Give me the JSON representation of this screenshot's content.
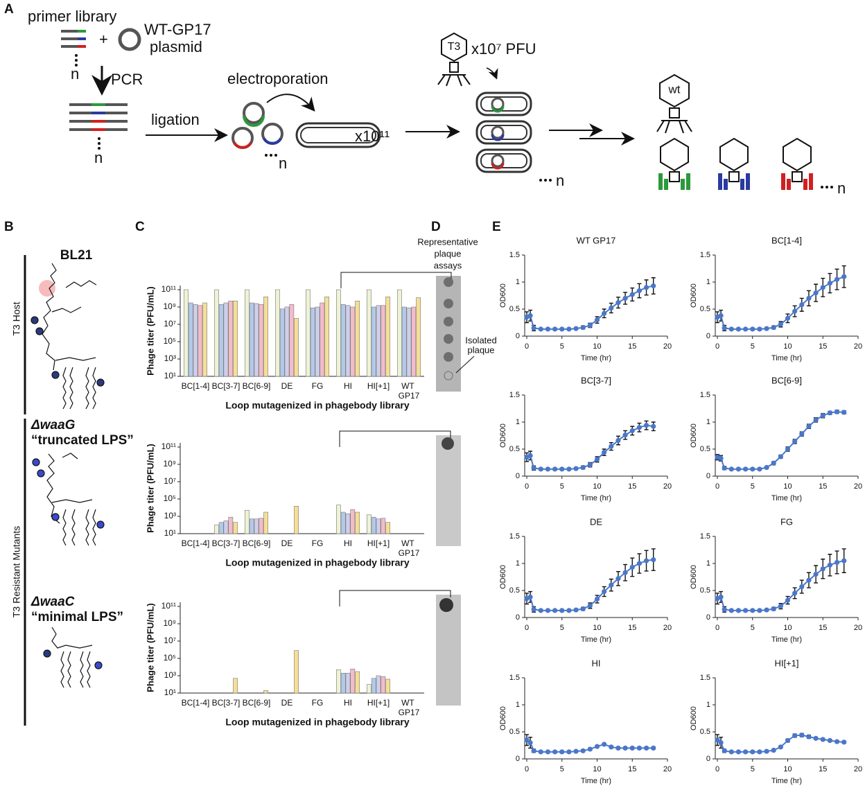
{
  "panels": {
    "a": "A",
    "b": "B",
    "c": "C",
    "d": "D",
    "e": "E"
  },
  "diagram": {
    "primer_library": "primer library",
    "plasmid": [
      "WT-GP17",
      "plasmid"
    ],
    "pcr": "PCR",
    "ligation": "ligation",
    "electroporation": "electroporation",
    "cells": "x10¹¹",
    "phage": "T3",
    "pfu": "x10⁷ PFU",
    "wt": "wt",
    "n": [
      "n",
      "n",
      "n",
      "n",
      "n"
    ]
  },
  "hosts": {
    "bl21": "BL21",
    "waag": "ΔwaaG",
    "waag_note": "“truncated LPS”",
    "waac": "ΔwaaC",
    "waac_note": "“minimal LPS”",
    "host_group": "T3 Host",
    "mutant_group": "T3 Resistant Mutants"
  },
  "plaques": {
    "title": [
      "Representative",
      "plaque",
      "assays"
    ],
    "isolated": [
      "Isolated",
      "plaque"
    ]
  },
  "chart_data": [
    {
      "type": "bar",
      "log_scale": true,
      "y_label": "Phage titer (PFU/mL)",
      "x_label": "Loop mutagenized in phagebody library",
      "categories": [
        "BC[1-4]",
        "BC[3-7]",
        "BC[6-9]",
        "DE",
        "FG",
        "HI",
        "HI[+1]",
        "WT GP17"
      ],
      "ylim": [
        10,
        300000000000
      ],
      "yticks": [
        {
          "value": 10,
          "label": "10¹"
        },
        {
          "value": 1000,
          "label": "10³"
        },
        {
          "value": 100000,
          "label": "10⁵"
        },
        {
          "value": 10000000,
          "label": "10⁷"
        },
        {
          "value": 1000000000,
          "label": "10⁹"
        },
        {
          "value": 100000000000,
          "label": "10¹¹"
        }
      ],
      "series": [
        {
          "color": "#eef3d6",
          "values": [
            100000000000,
            100000000000,
            100000000000,
            100000000000,
            100000000000,
            100000000000,
            100000000000,
            100000000000
          ]
        },
        {
          "color": "#b3c9ea",
          "values": [
            3000000000,
            2000000000,
            3000000000,
            600000000,
            800000000,
            2000000000,
            1000000000,
            1000000000
          ]
        },
        {
          "color": "#cfcfea",
          "values": [
            2000000000,
            3000000000,
            2500000000,
            1000000000,
            1000000000,
            1500000000,
            1500000000,
            800000000
          ]
        },
        {
          "color": "#f2bccb",
          "values": [
            1500000000,
            5000000000,
            2000000000,
            2000000000,
            3000000000,
            1000000000,
            1500000000,
            1000000000
          ]
        },
        {
          "color": "#f5df98",
          "values": [
            3000000000,
            5000000000,
            15000000000,
            50000000,
            15000000000,
            5000000000,
            15000000000,
            12000000000
          ]
        }
      ]
    },
    {
      "type": "bar",
      "log_scale": true,
      "y_label": "Phage titer (PFU/mL)",
      "x_label": "Loop mutagenized in phagebody library",
      "categories": [
        "BC[1-4]",
        "BC[3-7]",
        "BC[6-9]",
        "DE",
        "FG",
        "HI",
        "HI[+1]",
        "WT GP17"
      ],
      "ylim": [
        10,
        300000000000
      ],
      "yticks": [
        {
          "value": 10,
          "label": "10¹"
        },
        {
          "value": 1000,
          "label": "10³"
        },
        {
          "value": 100000,
          "label": "10⁵"
        },
        {
          "value": 10000000,
          "label": "10⁷"
        },
        {
          "value": 1000000000,
          "label": "10⁹"
        },
        {
          "value": 100000000000,
          "label": "10¹¹"
        }
      ],
      "series": [
        {
          "color": "#eef3d6",
          "values": [
            null,
            100,
            5000,
            null,
            null,
            20000,
            1500,
            null
          ]
        },
        {
          "color": "#b3c9ea",
          "values": [
            null,
            200,
            500,
            null,
            null,
            3000,
            800,
            null
          ]
        },
        {
          "color": "#cfcfea",
          "values": [
            null,
            300,
            500,
            null,
            null,
            2000,
            500,
            null
          ]
        },
        {
          "color": "#f2bccb",
          "values": [
            null,
            800,
            600,
            null,
            null,
            6000,
            600,
            null
          ]
        },
        {
          "color": "#f5df98",
          "values": [
            null,
            200,
            3000,
            15000,
            null,
            3000,
            200,
            null
          ]
        }
      ]
    },
    {
      "type": "bar",
      "log_scale": true,
      "y_label": "Phage titer (PFU/mL)",
      "x_label": "Loop mutagenized in phagebody library",
      "categories": [
        "BC[1-4]",
        "BC[3-7]",
        "BC[6-9]",
        "DE",
        "FG",
        "HI",
        "HI[+1]",
        "WT GP17"
      ],
      "ylim": [
        10,
        300000000000
      ],
      "yticks": [
        {
          "value": 10,
          "label": "10¹"
        },
        {
          "value": 1000,
          "label": "10³"
        },
        {
          "value": 100000,
          "label": "10⁵"
        },
        {
          "value": 10000000,
          "label": "10⁷"
        },
        {
          "value": 1000000000,
          "label": "10⁹"
        },
        {
          "value": 100000000000,
          "label": "10¹¹"
        }
      ],
      "series": [
        {
          "color": "#eef3d6",
          "values": [
            null,
            null,
            null,
            null,
            null,
            5000,
            100,
            null
          ]
        },
        {
          "color": "#b3c9ea",
          "values": [
            null,
            null,
            null,
            null,
            null,
            2000,
            500,
            null
          ]
        },
        {
          "color": "#cfcfea",
          "values": [
            null,
            null,
            null,
            null,
            null,
            2000,
            1000,
            null
          ]
        },
        {
          "color": "#f2bccb",
          "values": [
            null,
            null,
            null,
            null,
            null,
            6000,
            800,
            null
          ]
        },
        {
          "color": "#f5df98",
          "values": [
            null,
            500,
            20,
            800000,
            null,
            3000,
            400,
            null
          ]
        }
      ]
    },
    {
      "type": "line",
      "title": "WT GP17",
      "x_label": "Time (hr)",
      "y_label": "OD600",
      "xlim": [
        0,
        20
      ],
      "ylim": [
        0,
        1.5
      ],
      "xticks": [
        0,
        5,
        10,
        15,
        20
      ],
      "yticks": [
        0,
        0.5,
        1,
        1.5
      ],
      "error_color": "#111111",
      "x": [
        0,
        0.5,
        1,
        2,
        3,
        4,
        5,
        6,
        7,
        8,
        9,
        10,
        11,
        12,
        13,
        14,
        15,
        16,
        17,
        18
      ],
      "series": [
        {
          "color": "#4a77c9",
          "values": [
            0.35,
            0.38,
            0.15,
            0.13,
            0.13,
            0.13,
            0.13,
            0.13,
            0.14,
            0.16,
            0.2,
            0.3,
            0.42,
            0.52,
            0.62,
            0.7,
            0.77,
            0.84,
            0.9,
            0.93
          ],
          "errors": [
            0.1,
            0.1,
            0.05,
            0.02,
            0.02,
            0.02,
            0.02,
            0.02,
            0.02,
            0.03,
            0.04,
            0.06,
            0.08,
            0.09,
            0.1,
            0.11,
            0.12,
            0.13,
            0.14,
            0.15
          ]
        }
      ]
    },
    {
      "type": "line",
      "title": "BC[1-4]",
      "x_label": "Time (hr)",
      "y_label": "OD600",
      "xlim": [
        0,
        20
      ],
      "ylim": [
        0,
        1.5
      ],
      "xticks": [
        0,
        5,
        10,
        15,
        20
      ],
      "yticks": [
        0,
        0.5,
        1,
        1.5
      ],
      "error_color": "#111111",
      "x": [
        0,
        0.5,
        1,
        2,
        3,
        4,
        5,
        6,
        7,
        8,
        9,
        10,
        11,
        12,
        13,
        14,
        15,
        16,
        17,
        18
      ],
      "series": [
        {
          "color": "#4a77c9",
          "values": [
            0.35,
            0.38,
            0.15,
            0.13,
            0.13,
            0.13,
            0.13,
            0.13,
            0.14,
            0.16,
            0.22,
            0.33,
            0.46,
            0.58,
            0.7,
            0.8,
            0.9,
            0.98,
            1.05,
            1.1
          ],
          "errors": [
            0.1,
            0.1,
            0.05,
            0.02,
            0.02,
            0.02,
            0.02,
            0.02,
            0.02,
            0.03,
            0.05,
            0.08,
            0.1,
            0.12,
            0.14,
            0.16,
            0.17,
            0.18,
            0.19,
            0.2
          ]
        }
      ]
    },
    {
      "type": "line",
      "title": "BC[3-7]",
      "x_label": "Time (hr)",
      "y_label": "OD600",
      "xlim": [
        0,
        20
      ],
      "ylim": [
        0,
        1.5
      ],
      "xticks": [
        0,
        5,
        10,
        15,
        20
      ],
      "yticks": [
        0,
        0.5,
        1,
        1.5
      ],
      "error_color": "#111111",
      "x": [
        0,
        0.5,
        1,
        2,
        3,
        4,
        5,
        6,
        7,
        8,
        9,
        10,
        11,
        12,
        13,
        14,
        15,
        16,
        17,
        18
      ],
      "series": [
        {
          "color": "#4a77c9",
          "values": [
            0.35,
            0.38,
            0.15,
            0.13,
            0.13,
            0.13,
            0.13,
            0.13,
            0.14,
            0.16,
            0.21,
            0.31,
            0.44,
            0.55,
            0.66,
            0.76,
            0.84,
            0.9,
            0.94,
            0.92
          ],
          "errors": [
            0.08,
            0.08,
            0.04,
            0.02,
            0.02,
            0.02,
            0.02,
            0.02,
            0.02,
            0.03,
            0.04,
            0.05,
            0.06,
            0.07,
            0.08,
            0.08,
            0.08,
            0.08,
            0.08,
            0.08
          ]
        }
      ]
    },
    {
      "type": "line",
      "title": "BC[6-9]",
      "x_label": "Time (hr)",
      "y_label": "OD600",
      "xlim": [
        0,
        20
      ],
      "ylim": [
        0,
        1.5
      ],
      "xticks": [
        0,
        5,
        10,
        15,
        20
      ],
      "yticks": [
        0,
        0.5,
        1,
        1.5
      ],
      "error_color": "#111111",
      "x": [
        0,
        0.5,
        1,
        2,
        3,
        4,
        5,
        6,
        7,
        8,
        9,
        10,
        11,
        12,
        13,
        14,
        15,
        16,
        17,
        18
      ],
      "series": [
        {
          "color": "#4a77c9",
          "values": [
            0.35,
            0.33,
            0.15,
            0.13,
            0.13,
            0.13,
            0.13,
            0.13,
            0.16,
            0.24,
            0.36,
            0.5,
            0.64,
            0.78,
            0.92,
            1.04,
            1.12,
            1.17,
            1.19,
            1.18
          ],
          "errors": [
            0.05,
            0.05,
            0.03,
            0.02,
            0.02,
            0.02,
            0.02,
            0.02,
            0.02,
            0.03,
            0.03,
            0.04,
            0.04,
            0.04,
            0.04,
            0.04,
            0.04,
            0.03,
            0.03,
            0.03
          ]
        }
      ]
    },
    {
      "type": "line",
      "title": "DE",
      "x_label": "Time (hr)",
      "y_label": "OD600",
      "xlim": [
        0,
        20
      ],
      "ylim": [
        0,
        1.5
      ],
      "xticks": [
        0,
        5,
        10,
        15,
        20
      ],
      "yticks": [
        0,
        0.5,
        1,
        1.5
      ],
      "error_color": "#111111",
      "x": [
        0,
        0.5,
        1,
        2,
        3,
        4,
        5,
        6,
        7,
        8,
        9,
        10,
        11,
        12,
        13,
        14,
        15,
        16,
        17,
        18
      ],
      "series": [
        {
          "color": "#4a77c9",
          "values": [
            0.35,
            0.38,
            0.15,
            0.13,
            0.13,
            0.13,
            0.13,
            0.13,
            0.14,
            0.16,
            0.22,
            0.34,
            0.48,
            0.6,
            0.72,
            0.83,
            0.93,
            1.0,
            1.05,
            1.07
          ],
          "errors": [
            0.1,
            0.1,
            0.05,
            0.02,
            0.02,
            0.02,
            0.02,
            0.02,
            0.02,
            0.03,
            0.05,
            0.07,
            0.09,
            0.11,
            0.13,
            0.15,
            0.17,
            0.18,
            0.19,
            0.2
          ]
        }
      ]
    },
    {
      "type": "line",
      "title": "FG",
      "x_label": "Time (hr)",
      "y_label": "OD600",
      "xlim": [
        0,
        20
      ],
      "ylim": [
        0,
        1.5
      ],
      "xticks": [
        0,
        5,
        10,
        15,
        20
      ],
      "yticks": [
        0,
        0.5,
        1,
        1.5
      ],
      "error_color": "#111111",
      "x": [
        0,
        0.5,
        1,
        2,
        3,
        4,
        5,
        6,
        7,
        8,
        9,
        10,
        11,
        12,
        13,
        14,
        15,
        16,
        17,
        18
      ],
      "series": [
        {
          "color": "#4a77c9",
          "values": [
            0.35,
            0.38,
            0.15,
            0.13,
            0.13,
            0.13,
            0.13,
            0.13,
            0.14,
            0.16,
            0.21,
            0.32,
            0.45,
            0.57,
            0.69,
            0.8,
            0.9,
            0.97,
            1.02,
            1.05
          ],
          "errors": [
            0.1,
            0.1,
            0.05,
            0.02,
            0.02,
            0.02,
            0.02,
            0.02,
            0.02,
            0.03,
            0.05,
            0.07,
            0.1,
            0.12,
            0.14,
            0.16,
            0.18,
            0.2,
            0.21,
            0.22
          ]
        }
      ]
    },
    {
      "type": "line",
      "title": "HI",
      "x_label": "Time (hr)",
      "y_label": "OD600",
      "xlim": [
        0,
        20
      ],
      "ylim": [
        0,
        1.5
      ],
      "xticks": [
        0,
        5,
        10,
        15,
        20
      ],
      "yticks": [
        0,
        0.5,
        1,
        1.5
      ],
      "error_color": "#111111",
      "x": [
        0,
        0.5,
        1,
        2,
        3,
        4,
        5,
        6,
        7,
        8,
        9,
        10,
        11,
        12,
        13,
        14,
        15,
        16,
        17,
        18
      ],
      "series": [
        {
          "color": "#4a77c9",
          "values": [
            0.35,
            0.3,
            0.15,
            0.13,
            0.13,
            0.13,
            0.13,
            0.13,
            0.14,
            0.15,
            0.18,
            0.23,
            0.27,
            0.22,
            0.2,
            0.2,
            0.2,
            0.2,
            0.2,
            0.2
          ],
          "errors": [
            0.1,
            0.1,
            0.03,
            0.02,
            0.02,
            0.02,
            0.02,
            0.02,
            0.02,
            0.02,
            0.02,
            0.02,
            0.02,
            0.02,
            0.02,
            0.02,
            0.02,
            0.02,
            0.02,
            0.02
          ]
        }
      ]
    },
    {
      "type": "line",
      "title": "HI[+1]",
      "x_label": "Time (hr)",
      "y_label": "OD600",
      "xlim": [
        0,
        20
      ],
      "ylim": [
        0,
        1.5
      ],
      "xticks": [
        0,
        5,
        10,
        15,
        20
      ],
      "yticks": [
        0,
        0.5,
        1,
        1.5
      ],
      "error_color": "#111111",
      "x": [
        0,
        0.5,
        1,
        2,
        3,
        4,
        5,
        6,
        7,
        8,
        9,
        10,
        11,
        12,
        13,
        14,
        15,
        16,
        17,
        18
      ],
      "series": [
        {
          "color": "#4a77c9",
          "values": [
            0.35,
            0.3,
            0.15,
            0.13,
            0.13,
            0.13,
            0.13,
            0.13,
            0.14,
            0.16,
            0.22,
            0.34,
            0.43,
            0.44,
            0.41,
            0.38,
            0.36,
            0.34,
            0.32,
            0.31
          ],
          "errors": [
            0.1,
            0.1,
            0.03,
            0.02,
            0.02,
            0.02,
            0.02,
            0.02,
            0.02,
            0.02,
            0.02,
            0.03,
            0.03,
            0.03,
            0.03,
            0.02,
            0.02,
            0.02,
            0.02,
            0.02
          ]
        }
      ]
    }
  ]
}
